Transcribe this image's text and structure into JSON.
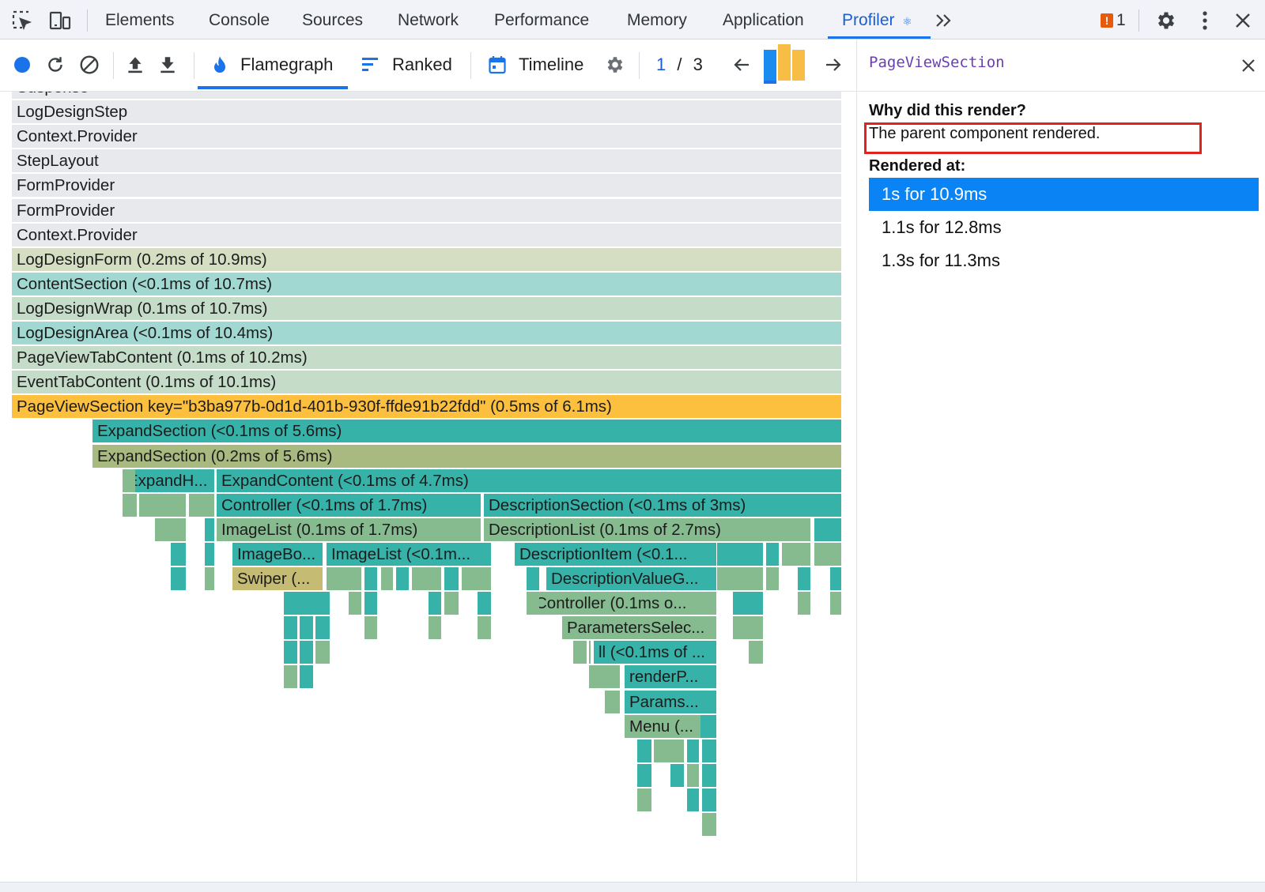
{
  "tabbar": {
    "tabs": [
      "Elements",
      "Console",
      "Sources",
      "Network",
      "Performance",
      "Memory",
      "Application",
      "Profiler"
    ],
    "active_tab": "Profiler",
    "issues_count": "1",
    "icons": [
      "inspect-element-icon",
      "device-toolbar-icon",
      "react-icon",
      "more-tabs-icon",
      "issues-flag-icon",
      "settings-gear-icon",
      "kebab-menu-icon",
      "close-devtools-icon"
    ]
  },
  "toolbar": {
    "modes": [
      "Flamegraph",
      "Ranked",
      "Timeline"
    ],
    "active_mode": "Flamegraph",
    "commit_current": "1",
    "commit_separator": "/",
    "commit_total": "3",
    "commit_bar_levels": [
      0.85,
      1.0,
      0.85
    ],
    "colors": {
      "record": "#1a73e8",
      "commit_selected": "#1a8cf0",
      "commit_other": "#f7bd45"
    }
  },
  "flamegraph": {
    "rows": [
      [
        {
          "label": "Suspense",
          "color": "#e8e9ed"
        }
      ],
      [
        {
          "label": "LogDesignStep",
          "color": "#e8e9ed"
        }
      ],
      [
        {
          "label": "Context.Provider",
          "color": "#e8e9ed"
        }
      ],
      [
        {
          "label": "StepLayout",
          "color": "#e8e9ed"
        }
      ],
      [
        {
          "label": "FormProvider",
          "color": "#e8e9ed"
        }
      ],
      [
        {
          "label": "FormProvider",
          "color": "#e8e9ed"
        }
      ],
      [
        {
          "label": "Context.Provider",
          "color": "#e8e9ed"
        }
      ],
      [
        {
          "label": "LogDesignForm (0.2ms of 10.9ms)",
          "color": "#d5ddc2"
        }
      ],
      [
        {
          "label": "ContentSection (<0.1ms of 10.7ms)",
          "color": "#a2d8d2"
        }
      ],
      [
        {
          "label": "LogDesignWrap (0.1ms of 10.7ms)",
          "color": "#c4dcc8"
        }
      ],
      [
        {
          "label": "LogDesignArea (<0.1ms of 10.4ms)",
          "color": "#a2d8d2"
        }
      ],
      [
        {
          "label": "PageViewTabContent (0.1ms of 10.2ms)",
          "color": "#c4dcc8"
        }
      ],
      [
        {
          "label": "EventTabContent (0.1ms of 10.1ms)",
          "color": "#c4dcc8"
        }
      ],
      [
        {
          "label": "PageViewSection key=\"b3ba977b-0d1d-401b-930f-ffde91b22fdd\" (0.5ms of 6.1ms)",
          "color": "#fdbf3e"
        }
      ],
      [
        {
          "label": "ExpandSection (<0.1ms of 5.6ms)",
          "color": "#37b2a8"
        }
      ],
      [
        {
          "label": "ExpandSection (0.2ms of 5.6ms)",
          "color": "#a8ba80"
        }
      ],
      [
        {
          "label": "ExpandH...",
          "color": "#37b2a8"
        },
        {
          "label": "ExpandContent (<0.1ms of 4.7ms)",
          "color": "#37b2a8"
        }
      ],
      [
        {
          "label": "Controller (<0.1ms of 1.7ms)",
          "color": "#37b2a8"
        },
        {
          "label": "DescriptionSection (<0.1ms of 3ms)",
          "color": "#37b2a8"
        }
      ],
      [
        {
          "label": "ImageList (0.1ms of 1.7ms)",
          "color": "#86bb90"
        },
        {
          "label": "DescriptionList (0.1ms of 2.7ms)",
          "color": "#86bb90"
        }
      ],
      [
        {
          "label": "ImageBo...",
          "color": "#37b2a8"
        },
        {
          "label": "ImageList (<0.1m...",
          "color": "#37b2a8"
        },
        {
          "label": "DescriptionItem (<0.1...",
          "color": "#37b2a8"
        }
      ],
      [
        {
          "label": "Swiper (...",
          "color": "#c6bb72"
        },
        {
          "label": "DescriptionValueG...",
          "color": "#37b2a8"
        }
      ],
      [
        {
          "label": "Controller (0.1ms o...",
          "color": "#86bb90"
        }
      ],
      [
        {
          "label": "ParametersSelec...",
          "color": "#86bb90"
        }
      ],
      [
        {
          "label": "ll (<0.1ms of ...",
          "color": "#37b2a8"
        }
      ],
      [
        {
          "label": "renderP...",
          "color": "#37b2a8"
        }
      ],
      [
        {
          "label": "Params...",
          "color": "#37b2a8"
        }
      ],
      [
        {
          "label": "Menu (...",
          "color": "#86bb90"
        }
      ]
    ]
  },
  "side_panel": {
    "title": "PageViewSection",
    "why_heading": "Why did this render?",
    "reason": "The parent component rendered.",
    "rendered_heading": "Rendered at:",
    "renders": [
      "1s for 10.9ms",
      "1.1s for 12.8ms",
      "1.3s for 11.3ms"
    ],
    "selected_render": 0
  }
}
